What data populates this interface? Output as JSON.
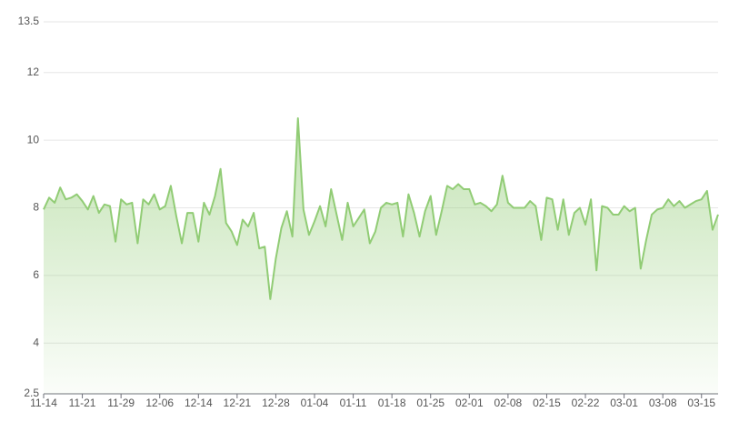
{
  "chart_data": {
    "type": "line",
    "categories": [
      "11-14",
      null,
      null,
      null,
      null,
      null,
      null,
      "11-21",
      null,
      null,
      null,
      null,
      null,
      null,
      "11-29",
      null,
      null,
      null,
      null,
      null,
      null,
      "12-06",
      null,
      null,
      null,
      null,
      null,
      null,
      "12-14",
      null,
      null,
      null,
      null,
      null,
      null,
      "12-21",
      null,
      null,
      null,
      null,
      null,
      null,
      "12-28",
      null,
      null,
      null,
      null,
      null,
      null,
      "01-04",
      null,
      null,
      null,
      null,
      null,
      null,
      "01-11",
      null,
      null,
      null,
      null,
      null,
      null,
      "01-18",
      null,
      null,
      null,
      null,
      null,
      null,
      "01-25",
      null,
      null,
      null,
      null,
      null,
      null,
      "02-01",
      null,
      null,
      null,
      null,
      null,
      null,
      "02-08",
      null,
      null,
      null,
      null,
      null,
      null,
      "02-15",
      null,
      null,
      null,
      null,
      null,
      null,
      "02-22",
      null,
      null,
      null,
      null,
      null,
      null,
      "03-01",
      null,
      null,
      null,
      null,
      null,
      null,
      "03-08",
      null,
      null,
      null,
      null,
      null,
      null,
      "03-15",
      null,
      null,
      null
    ],
    "values": [
      7.95,
      8.3,
      8.15,
      8.6,
      8.25,
      8.3,
      8.4,
      8.2,
      7.95,
      8.35,
      7.85,
      8.1,
      8.05,
      7.0,
      8.25,
      8.1,
      8.15,
      6.95,
      8.25,
      8.1,
      8.4,
      7.95,
      8.05,
      8.65,
      7.75,
      6.95,
      7.85,
      7.85,
      7.0,
      8.15,
      7.8,
      8.35,
      9.15,
      7.55,
      7.3,
      6.9,
      7.65,
      7.45,
      7.85,
      6.8,
      6.85,
      5.3,
      6.5,
      7.4,
      7.9,
      7.15,
      10.65,
      7.95,
      7.2,
      7.6,
      8.05,
      7.45,
      8.55,
      7.8,
      7.05,
      8.15,
      7.45,
      7.7,
      7.95,
      6.95,
      7.3,
      8.0,
      8.15,
      8.1,
      8.15,
      7.15,
      8.4,
      7.85,
      7.15,
      7.9,
      8.35,
      7.2,
      7.9,
      8.65,
      8.55,
      8.7,
      8.55,
      8.55,
      8.1,
      8.15,
      8.05,
      7.9,
      8.1,
      8.95,
      8.15,
      8.0,
      8.0,
      8.0,
      8.2,
      8.05,
      7.05,
      8.3,
      8.25,
      7.35,
      8.25,
      7.2,
      7.85,
      8.0,
      7.5,
      8.25,
      6.15,
      8.05,
      8.0,
      7.8,
      7.8,
      8.05,
      7.9,
      8.0,
      6.2,
      7.05,
      7.8,
      7.95,
      8.0,
      8.25,
      8.05,
      8.2,
      8.0,
      8.1,
      8.2,
      8.25,
      8.5,
      7.35,
      7.8
    ],
    "color": "#91cc75",
    "ylim": [
      2.5,
      13.5
    ],
    "yticks": [
      2.5,
      4,
      6,
      8,
      10,
      12,
      13.5
    ],
    "grid": true
  }
}
